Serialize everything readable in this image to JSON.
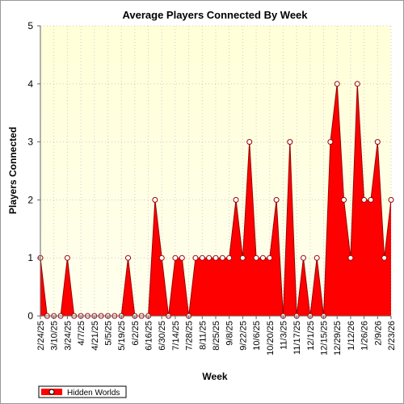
{
  "chart_data": {
    "type": "area",
    "title": "Average Players Connected By Week",
    "xlabel": "Week",
    "ylabel": "Players Connected",
    "ylim": [
      0,
      5
    ],
    "yticks": [
      0,
      1,
      2,
      3,
      4,
      5
    ],
    "grid": true,
    "legend_position": "bottom-left",
    "colors": {
      "series": "#ff0000",
      "outline": "#990000",
      "plot_bg_top": "#ffffd8",
      "plot_bg_bottom": "#ffffee",
      "grid": "#cccccc"
    },
    "x_tick_labels": [
      "2/24/25",
      "3/10/25",
      "3/24/25",
      "4/7/25",
      "4/21/25",
      "5/5/25",
      "5/19/25",
      "6/2/25",
      "6/16/25",
      "6/30/25",
      "7/14/25",
      "7/28/25",
      "8/11/25",
      "8/25/25",
      "9/8/25",
      "9/22/25",
      "10/6/25",
      "10/20/25",
      "11/3/25",
      "11/17/25",
      "12/1/25",
      "12/15/25",
      "12/29/25",
      "1/12/26",
      "1/26/26",
      "2/9/26",
      "2/23/26"
    ],
    "series": [
      {
        "name": "Hidden Worlds",
        "values": [
          1,
          0,
          0,
          0,
          1,
          0,
          0,
          0,
          0,
          0,
          0,
          0,
          0,
          1,
          0,
          0,
          0,
          2,
          1,
          0,
          1,
          1,
          0,
          1,
          1,
          1,
          1,
          1,
          1,
          2,
          1,
          3,
          1,
          1,
          1,
          2,
          0,
          3,
          0,
          1,
          0,
          1,
          0,
          3,
          4,
          2,
          1,
          4,
          2,
          2,
          3,
          1,
          2
        ]
      }
    ]
  }
}
